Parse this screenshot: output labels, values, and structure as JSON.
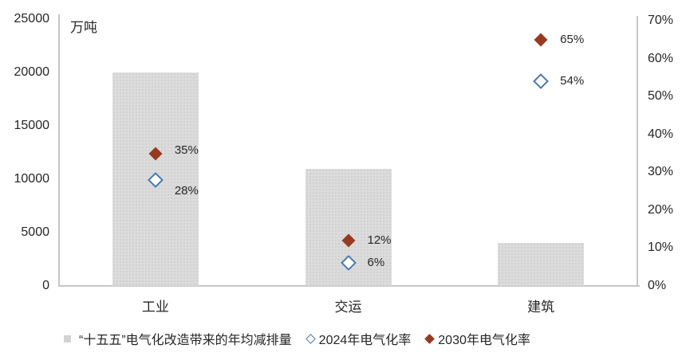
{
  "chart_data": {
    "type": "bar",
    "unit_label": "万吨",
    "categories": [
      "工业",
      "交运",
      "建筑"
    ],
    "series": [
      {
        "name": "“十五五”电气化改造带来的年均减排量",
        "type": "bar",
        "axis": "left",
        "color": "#dcdcdc",
        "values": [
          20000,
          11000,
          4000
        ]
      },
      {
        "name": "2024年电气化率",
        "type": "scatter",
        "marker": "diamond-hollow",
        "axis": "right",
        "color": "#4a78ab",
        "values": [
          28,
          6,
          54
        ],
        "labels": [
          "28%",
          "6%",
          "54%"
        ],
        "label_dy": [
          14,
          0,
          0
        ]
      },
      {
        "name": "2030年电气化率",
        "type": "scatter",
        "marker": "diamond-filled",
        "axis": "right",
        "color": "#963a21",
        "values": [
          35,
          12,
          65
        ],
        "labels": [
          "35%",
          "12%",
          "65%"
        ],
        "label_dy": [
          -4,
          0,
          0
        ]
      }
    ],
    "left_axis": {
      "min": 0,
      "max": 25000,
      "tick_step": 5000,
      "ticks": [
        "0",
        "5000",
        "10000",
        "15000",
        "20000",
        "25000"
      ]
    },
    "right_axis": {
      "min": 0,
      "max": 70,
      "tick_step": 10,
      "ticks": [
        "0%",
        "10%",
        "20%",
        "30%",
        "40%",
        "50%",
        "60%",
        "70%"
      ]
    },
    "grid": false,
    "legend_position": "bottom",
    "legend": [
      {
        "label": "“十五五”电气化改造带来的年均减排量",
        "marker": "square",
        "color": "#d2d2d2"
      },
      {
        "label": "2024年电气化率",
        "marker": "diamond-hollow",
        "color": "#4a78ab"
      },
      {
        "label": "2030年电气化率",
        "marker": "diamond-filled",
        "color": "#963a21"
      }
    ]
  }
}
